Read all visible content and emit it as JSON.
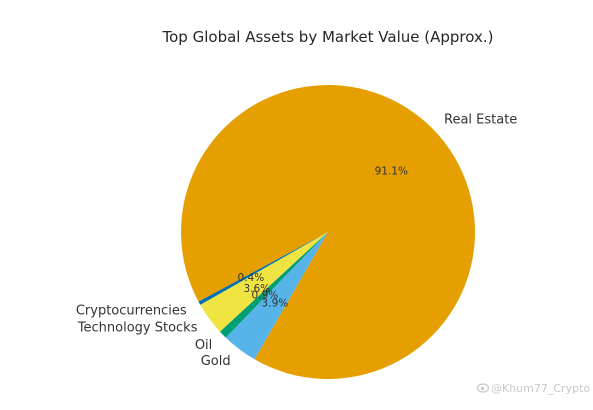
{
  "chart_data": {
    "type": "pie",
    "title": "Top Global Assets by Market Value (Approx.)",
    "categories": [
      "Real Estate",
      "Cryptocurrencies",
      "Technology Stocks",
      "Oil",
      "Gold"
    ],
    "values": [
      91.1,
      0.4,
      3.6,
      0.9,
      3.9
    ],
    "percent_labels": [
      "91.1%",
      "0.4%",
      "3.6%",
      "0.9%",
      "3.9%"
    ],
    "colors": [
      "#E69F00",
      "#0072B2",
      "#F0E442",
      "#009E73",
      "#56B4E9"
    ],
    "start_angle_deg": 240,
    "direction": "counterclockwise",
    "legend": "none"
  },
  "watermark": {
    "text": "@Khum77_Crypto",
    "icon": "weibo-icon"
  }
}
